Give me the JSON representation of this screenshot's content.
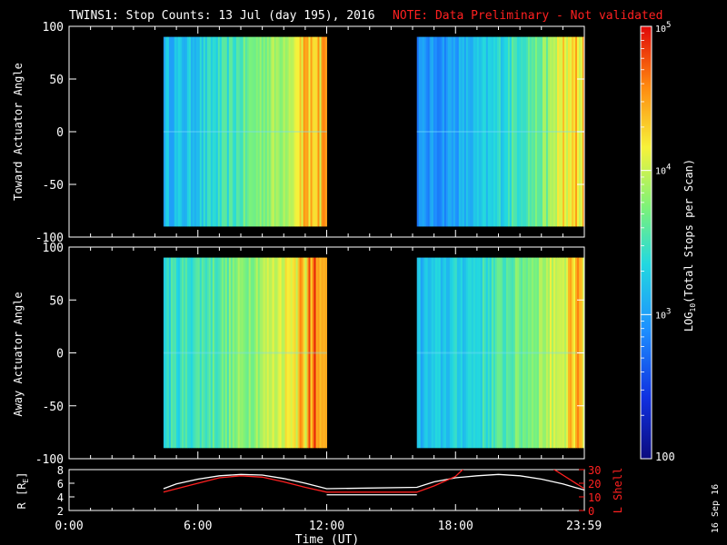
{
  "title": "TWINS1: Stop Counts: 13 Jul (day 195), 2016",
  "note": "NOTE: Data Preliminary - Not validated",
  "date_stamp": "16 Sep 16",
  "colors": {
    "background": "#000000",
    "axis": "#ffffff",
    "note": "#ff2020",
    "model_curve": "#ff2020"
  },
  "chart_data": [
    {
      "type": "heatmap",
      "ylabel": "Toward Actuator Angle",
      "xlim": [
        0,
        24
      ],
      "ylim": [
        -100,
        100
      ],
      "yticks": [
        -100,
        -50,
        0,
        50,
        100
      ],
      "data_ranges": [
        [
          4.4,
          12.0
        ],
        [
          16.2,
          24.0
        ]
      ],
      "angle_range": [
        -90,
        90
      ],
      "log_counts_profile": [
        3.15,
        3.2,
        3.35,
        3.5,
        3.75,
        3.9,
        4.2,
        4.5
      ],
      "colormap": "rainbow"
    },
    {
      "type": "heatmap",
      "ylabel": "Away Actuator Angle",
      "xlim": [
        0,
        24
      ],
      "ylim": [
        -100,
        100
      ],
      "yticks": [
        -100,
        -50,
        0,
        50,
        100
      ],
      "data_ranges": [
        [
          4.4,
          12.0
        ],
        [
          16.2,
          24.0
        ]
      ],
      "angle_range": [
        -90,
        90
      ],
      "log_counts_profile": [
        3.4,
        3.5,
        3.6,
        3.8,
        4.0,
        4.3,
        4.5
      ],
      "colormap": "rainbow"
    },
    {
      "type": "line",
      "ylabel": "R [R",
      "ylabel_sub": "E",
      "ylabel_close": "]",
      "y2label": "L Shell",
      "xlabel": "Time (UT)",
      "xlim": [
        0,
        24
      ],
      "xtick_values": [
        0,
        6,
        12,
        18,
        23.983
      ],
      "xtick_labels": [
        "0:00",
        "6:00",
        "12:00",
        "18:00",
        "23:59"
      ],
      "ylim": [
        2,
        8
      ],
      "yticks": [
        2,
        4,
        6,
        8
      ],
      "y2lim": [
        0,
        30
      ],
      "y2ticks": [
        0,
        10,
        20,
        30
      ],
      "series": [
        {
          "name": "R",
          "color": "white",
          "x": [
            4.4,
            5,
            6,
            7,
            8,
            9,
            10,
            11,
            12,
            16.2,
            17,
            18,
            19,
            20,
            21,
            22,
            23,
            24
          ],
          "values": [
            5.2,
            5.9,
            6.6,
            7.1,
            7.3,
            7.2,
            6.7,
            6.0,
            5.2,
            5.4,
            6.2,
            6.8,
            7.1,
            7.3,
            7.1,
            6.6,
            5.9,
            5.0
          ]
        },
        {
          "name": "L Shell",
          "color": "red",
          "axis": "right",
          "x": [
            4.4,
            6,
            7,
            8,
            9,
            10,
            11,
            12,
            16.2,
            17,
            18,
            18.4,
            22.5,
            23,
            24
          ],
          "values": [
            13.5,
            20,
            24,
            25.5,
            24.5,
            21,
            17,
            13.5,
            13.5,
            18,
            25,
            31,
            31,
            26,
            16
          ]
        }
      ]
    }
  ],
  "colorbar": {
    "label_prefix": "LOG",
    "label_sub": "10",
    "label_suffix": "(Total Stops per Scan)",
    "tick_labels": [
      {
        "base": "10",
        "exp": "5",
        "value": 5
      },
      {
        "base": "10",
        "exp": "4",
        "value": 4
      },
      {
        "base": "10",
        "exp": "3",
        "value": 3
      },
      {
        "base": "100",
        "exp": "",
        "value": 2
      }
    ],
    "range": [
      2,
      5
    ]
  }
}
